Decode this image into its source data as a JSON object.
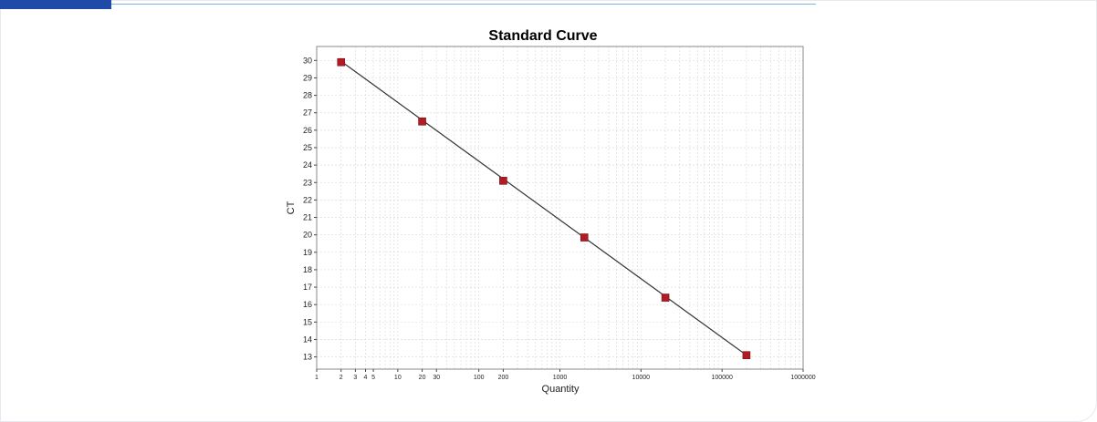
{
  "chart_data": {
    "type": "scatter",
    "title": "Standard Curve",
    "xlabel": "Quantity",
    "ylabel": "CT",
    "x_scale": "log",
    "xlim": [
      1,
      1000000
    ],
    "ylim": [
      12.3,
      30.8
    ],
    "y_ticks": [
      13,
      14,
      15,
      16,
      17,
      18,
      19,
      20,
      21,
      22,
      23,
      24,
      25,
      26,
      27,
      28,
      29,
      30
    ],
    "x_tick_labels": [
      {
        "value": 1,
        "label": "1"
      },
      {
        "value": 2,
        "label": "2"
      },
      {
        "value": 3,
        "label": "3"
      },
      {
        "value": 4,
        "label": "4"
      },
      {
        "value": 5,
        "label": "5"
      },
      {
        "value": 10,
        "label": "10"
      },
      {
        "value": 20,
        "label": "20"
      },
      {
        "value": 30,
        "label": "30"
      },
      {
        "value": 100,
        "label": "100"
      },
      {
        "value": 200,
        "label": "200"
      },
      {
        "value": 1000,
        "label": "1000"
      },
      {
        "value": 10000,
        "label": "10000"
      },
      {
        "value": 100000,
        "label": "100000"
      },
      {
        "value": 1000000,
        "label": "1000000"
      }
    ],
    "points": [
      {
        "x": 2,
        "y": 29.9
      },
      {
        "x": 20,
        "y": 26.5
      },
      {
        "x": 200,
        "y": 23.1
      },
      {
        "x": 2000,
        "y": 19.85
      },
      {
        "x": 20000,
        "y": 16.4
      },
      {
        "x": 200000,
        "y": 13.1
      }
    ],
    "regression_line": {
      "x_start": 2,
      "y_start": 29.95,
      "x_end": 200000,
      "y_end": 13.1
    },
    "grid": true,
    "colors": {
      "marker": "#b01c24",
      "line": "#333333",
      "grid": "#dddddd",
      "axis": "#444444"
    }
  },
  "page": {
    "accent_color": "#1f4aa8",
    "accent_line_color": "#7fb2e3"
  }
}
